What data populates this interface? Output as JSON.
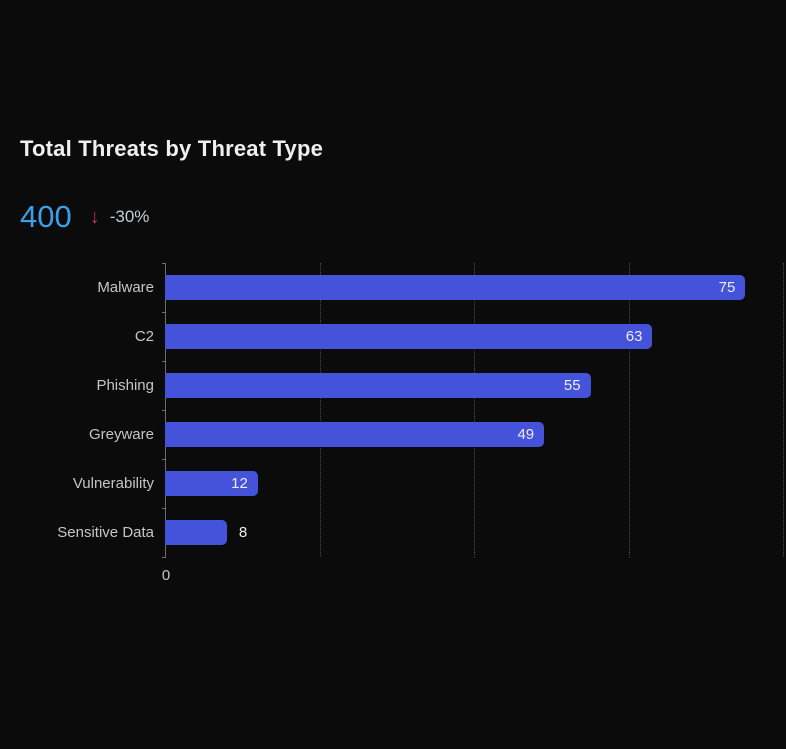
{
  "panel": {
    "title": "Total Threats by Threat Type",
    "kpi": {
      "value": "400",
      "trend_direction": "down",
      "arrow": "↓",
      "delta": "-30%"
    }
  },
  "chart_data": {
    "type": "bar",
    "orientation": "horizontal",
    "title": "Total Threats by Threat Type",
    "categories": [
      "Malware",
      "C2",
      "Phishing",
      "Greyware",
      "Vulnerability",
      "Sensitive Data"
    ],
    "values": [
      75,
      63,
      55,
      49,
      12,
      8
    ],
    "xlabel": "",
    "ylabel": "",
    "xlim": [
      0,
      80
    ],
    "gridlines_x": [
      20,
      40,
      60,
      80
    ],
    "grid_style": "dotted",
    "x_tick_labels": [
      "0"
    ],
    "legend_position": "none",
    "value_labels_shown": true
  },
  "colors": {
    "background": "#0b0b0c",
    "bar": "#4453da",
    "kpi_value": "#3aa0e9",
    "trend_negative": "#c52f6d",
    "title_text": "#f0f0f0",
    "axis_label_text": "#c6c6c6",
    "value_label_text": "#ededed",
    "axis_line": "#6e6e6e",
    "gridline": "#4b4b4b"
  }
}
